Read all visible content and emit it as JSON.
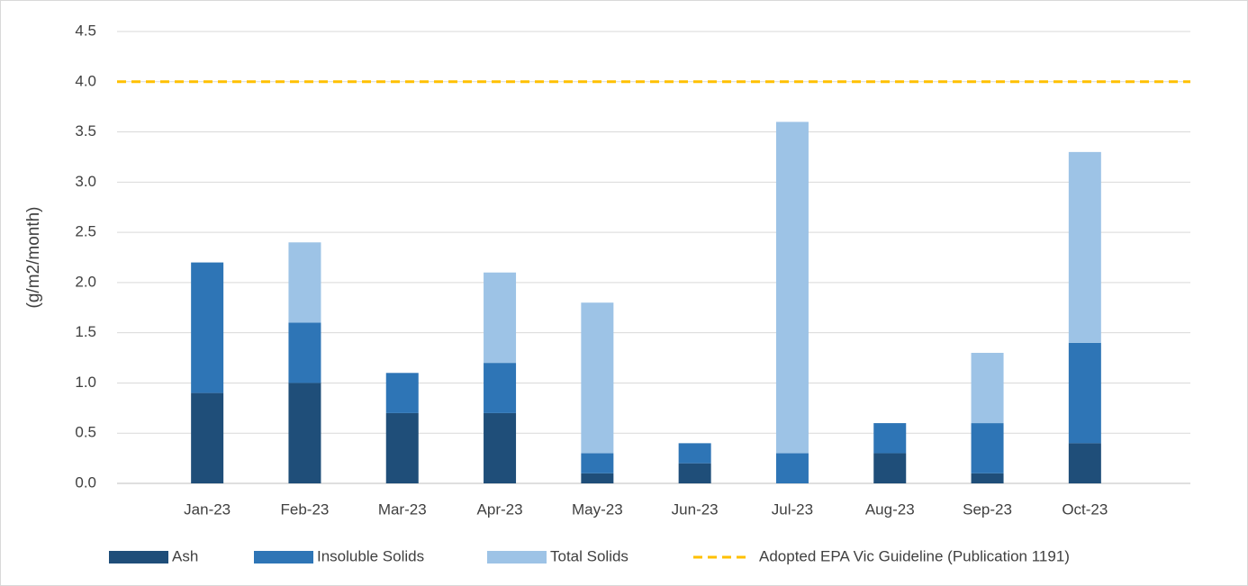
{
  "chart_data": {
    "type": "stacked_bar",
    "ylabel": "(g/m2/month)",
    "categories": [
      "Jan-23",
      "Feb-23",
      "Mar-23",
      "Apr-23",
      "May-23",
      "Jun-23",
      "Jul-23",
      "Aug-23",
      "Sep-23",
      "Oct-23"
    ],
    "series": [
      {
        "name": "Ash",
        "color": "#1f4e79",
        "values": [
          0.9,
          1.0,
          0.7,
          0.7,
          0.1,
          0.2,
          0,
          0.3,
          0.1,
          0.4
        ]
      },
      {
        "name": "Insoluble Solids",
        "color": "#2e75b6",
        "values": [
          1.3,
          0.6,
          0.4,
          0.5,
          0.2,
          0.2,
          0.3,
          0.3,
          0.5,
          1.0
        ]
      },
      {
        "name": "Total Solids",
        "color": "#9dc3e6",
        "values": [
          0,
          0.8,
          0,
          0.9,
          1.5,
          0,
          3.3,
          0,
          0.7,
          1.9
        ]
      }
    ],
    "guideline": {
      "name": "Adopted EPA Vic Guideline (Publication 1191)",
      "color": "#ffc000",
      "value": 4.0
    },
    "ylim": [
      0,
      4.5
    ],
    "yticks": [
      {
        "value": 0,
        "label": "0.0"
      },
      0.5,
      {
        "value": 1,
        "label": "1.0"
      },
      1.5,
      {
        "value": 2,
        "label": "2.0"
      },
      2.5,
      {
        "value": 3,
        "label": "3.0"
      },
      3.5,
      {
        "value": 4,
        "label": "4.0"
      },
      4.5
    ],
    "grid": true
  }
}
